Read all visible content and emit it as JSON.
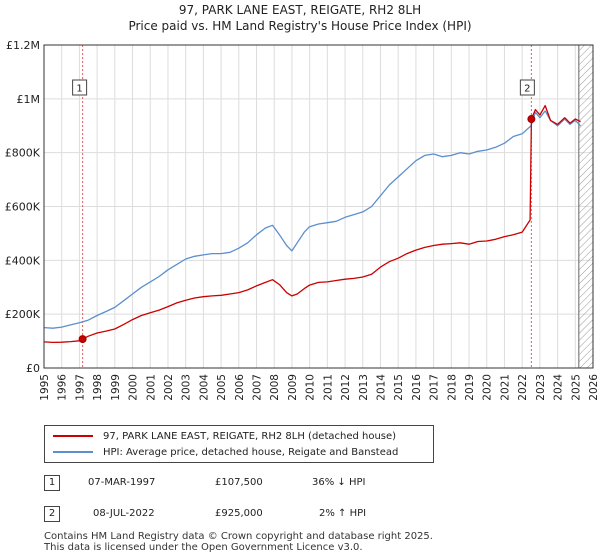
{
  "header": {
    "title_line1": "97, PARK LANE EAST, REIGATE, RH2 8LH",
    "title_line2": "Price paid vs. HM Land Registry's House Price Index (HPI)"
  },
  "chart_data": {
    "type": "line",
    "title": "97, PARK LANE EAST, REIGATE, RH2 8LH — Price paid vs. HM Land Registry's House Price Index (HPI)",
    "xlabel": "",
    "ylabel": "",
    "xlim": [
      1995,
      2026
    ],
    "ylim": [
      0,
      1200000
    ],
    "x_ticks": [
      "1995",
      "1996",
      "1997",
      "1998",
      "1999",
      "2000",
      "2001",
      "2002",
      "2003",
      "2004",
      "2005",
      "2006",
      "2007",
      "2008",
      "2009",
      "2010",
      "2011",
      "2012",
      "2013",
      "2014",
      "2015",
      "2016",
      "2017",
      "2018",
      "2019",
      "2020",
      "2021",
      "2022",
      "2023",
      "2024",
      "2025",
      "2026"
    ],
    "y_ticks": [
      {
        "value": 0,
        "label": "£0"
      },
      {
        "value": 200000,
        "label": "£200K"
      },
      {
        "value": 400000,
        "label": "£400K"
      },
      {
        "value": 600000,
        "label": "£600K"
      },
      {
        "value": 800000,
        "label": "£800K"
      },
      {
        "value": 1000000,
        "label": "£1M"
      },
      {
        "value": 1200000,
        "label": "£1.2M"
      }
    ],
    "grid": true,
    "colors": {
      "red": "#cc0000",
      "blue": "#5b8fcf",
      "marker_line": "#e06060",
      "hatch": "#999999",
      "grid": "#dddddd"
    },
    "series": [
      {
        "name": "97, PARK LANE EAST, REIGATE, RH2 8LH (detached house)",
        "color": "#cc0000",
        "x": [
          1995.0,
          1995.5,
          1996.0,
          1996.5,
          1997.0,
          1997.18,
          1997.5,
          1998.0,
          1998.5,
          1999.0,
          1999.5,
          2000.0,
          2000.5,
          2001.0,
          2001.5,
          2002.0,
          2002.5,
          2003.0,
          2003.5,
          2004.0,
          2004.5,
          2005.0,
          2005.5,
          2006.0,
          2006.5,
          2007.0,
          2007.5,
          2007.9,
          2008.3,
          2008.7,
          2009.0,
          2009.3,
          2009.7,
          2010.0,
          2010.5,
          2011.0,
          2011.5,
          2012.0,
          2012.5,
          2013.0,
          2013.5,
          2014.0,
          2014.5,
          2015.0,
          2015.5,
          2016.0,
          2016.5,
          2017.0,
          2017.5,
          2018.0,
          2018.5,
          2019.0,
          2019.5,
          2020.0,
          2020.5,
          2021.0,
          2021.5,
          2022.0,
          2022.45,
          2022.52,
          2022.75,
          2023.0,
          2023.3,
          2023.6,
          2024.0,
          2024.4,
          2024.7,
          2025.0,
          2025.3
        ],
        "values": [
          97000,
          95000,
          96000,
          98000,
          101000,
          107500,
          118000,
          130000,
          137000,
          145000,
          162000,
          180000,
          195000,
          205000,
          215000,
          228000,
          242000,
          252000,
          260000,
          265000,
          268000,
          270000,
          275000,
          280000,
          290000,
          305000,
          318000,
          328000,
          310000,
          280000,
          268000,
          275000,
          295000,
          308000,
          318000,
          320000,
          325000,
          330000,
          333000,
          338000,
          348000,
          375000,
          395000,
          408000,
          425000,
          438000,
          448000,
          455000,
          460000,
          462000,
          465000,
          460000,
          470000,
          472000,
          478000,
          488000,
          495000,
          505000,
          550000,
          925000,
          960000,
          940000,
          975000,
          920000,
          905000,
          930000,
          910000,
          925000,
          915000
        ]
      },
      {
        "name": "HPI: Average price, detached house, Reigate and Banstead",
        "color": "#5b8fcf",
        "x": [
          1995.0,
          1995.5,
          1996.0,
          1996.5,
          1997.0,
          1997.5,
          1998.0,
          1998.5,
          1999.0,
          1999.5,
          2000.0,
          2000.5,
          2001.0,
          2001.5,
          2002.0,
          2002.5,
          2003.0,
          2003.5,
          2004.0,
          2004.5,
          2005.0,
          2005.5,
          2006.0,
          2006.5,
          2007.0,
          2007.5,
          2007.9,
          2008.3,
          2008.7,
          2009.0,
          2009.3,
          2009.7,
          2010.0,
          2010.5,
          2011.0,
          2011.5,
          2012.0,
          2012.5,
          2013.0,
          2013.5,
          2014.0,
          2014.5,
          2015.0,
          2015.5,
          2016.0,
          2016.5,
          2017.0,
          2017.5,
          2018.0,
          2018.5,
          2019.0,
          2019.5,
          2020.0,
          2020.5,
          2021.0,
          2021.5,
          2022.0,
          2022.5,
          2022.75,
          2023.0,
          2023.3,
          2023.6,
          2024.0,
          2024.4,
          2024.7,
          2025.0,
          2025.3
        ],
        "values": [
          150000,
          148000,
          152000,
          160000,
          168000,
          178000,
          195000,
          210000,
          225000,
          250000,
          275000,
          300000,
          320000,
          340000,
          365000,
          385000,
          405000,
          415000,
          420000,
          425000,
          425000,
          430000,
          445000,
          465000,
          495000,
          520000,
          530000,
          495000,
          455000,
          435000,
          465000,
          505000,
          525000,
          535000,
          540000,
          545000,
          560000,
          570000,
          580000,
          600000,
          640000,
          680000,
          710000,
          740000,
          770000,
          790000,
          795000,
          785000,
          790000,
          800000,
          795000,
          805000,
          810000,
          820000,
          835000,
          860000,
          870000,
          900000,
          950000,
          930000,
          955000,
          920000,
          900000,
          925000,
          905000,
          920000,
          900000
        ]
      }
    ],
    "annotations": [
      {
        "id": "1",
        "x": 1997.18,
        "value": 107500
      },
      {
        "id": "2",
        "x": 2022.52,
        "value": 925000
      }
    ],
    "hatched_region_start": 2025.2
  },
  "legend": {
    "red_label": "97, PARK LANE EAST, REIGATE, RH2 8LH (detached house)",
    "blue_label": "HPI: Average price, detached house, Reigate and Banstead"
  },
  "transactions": [
    {
      "num": "1",
      "date": "07-MAR-1997",
      "price": "£107,500",
      "hpi": "36% ↓ HPI"
    },
    {
      "num": "2",
      "date": "08-JUL-2022",
      "price": "£925,000",
      "hpi": "2% ↑ HPI"
    }
  ],
  "footer": {
    "line1": "Contains HM Land Registry data © Crown copyright and database right 2025.",
    "line2": "This data is licensed under the Open Government Licence v3.0."
  }
}
